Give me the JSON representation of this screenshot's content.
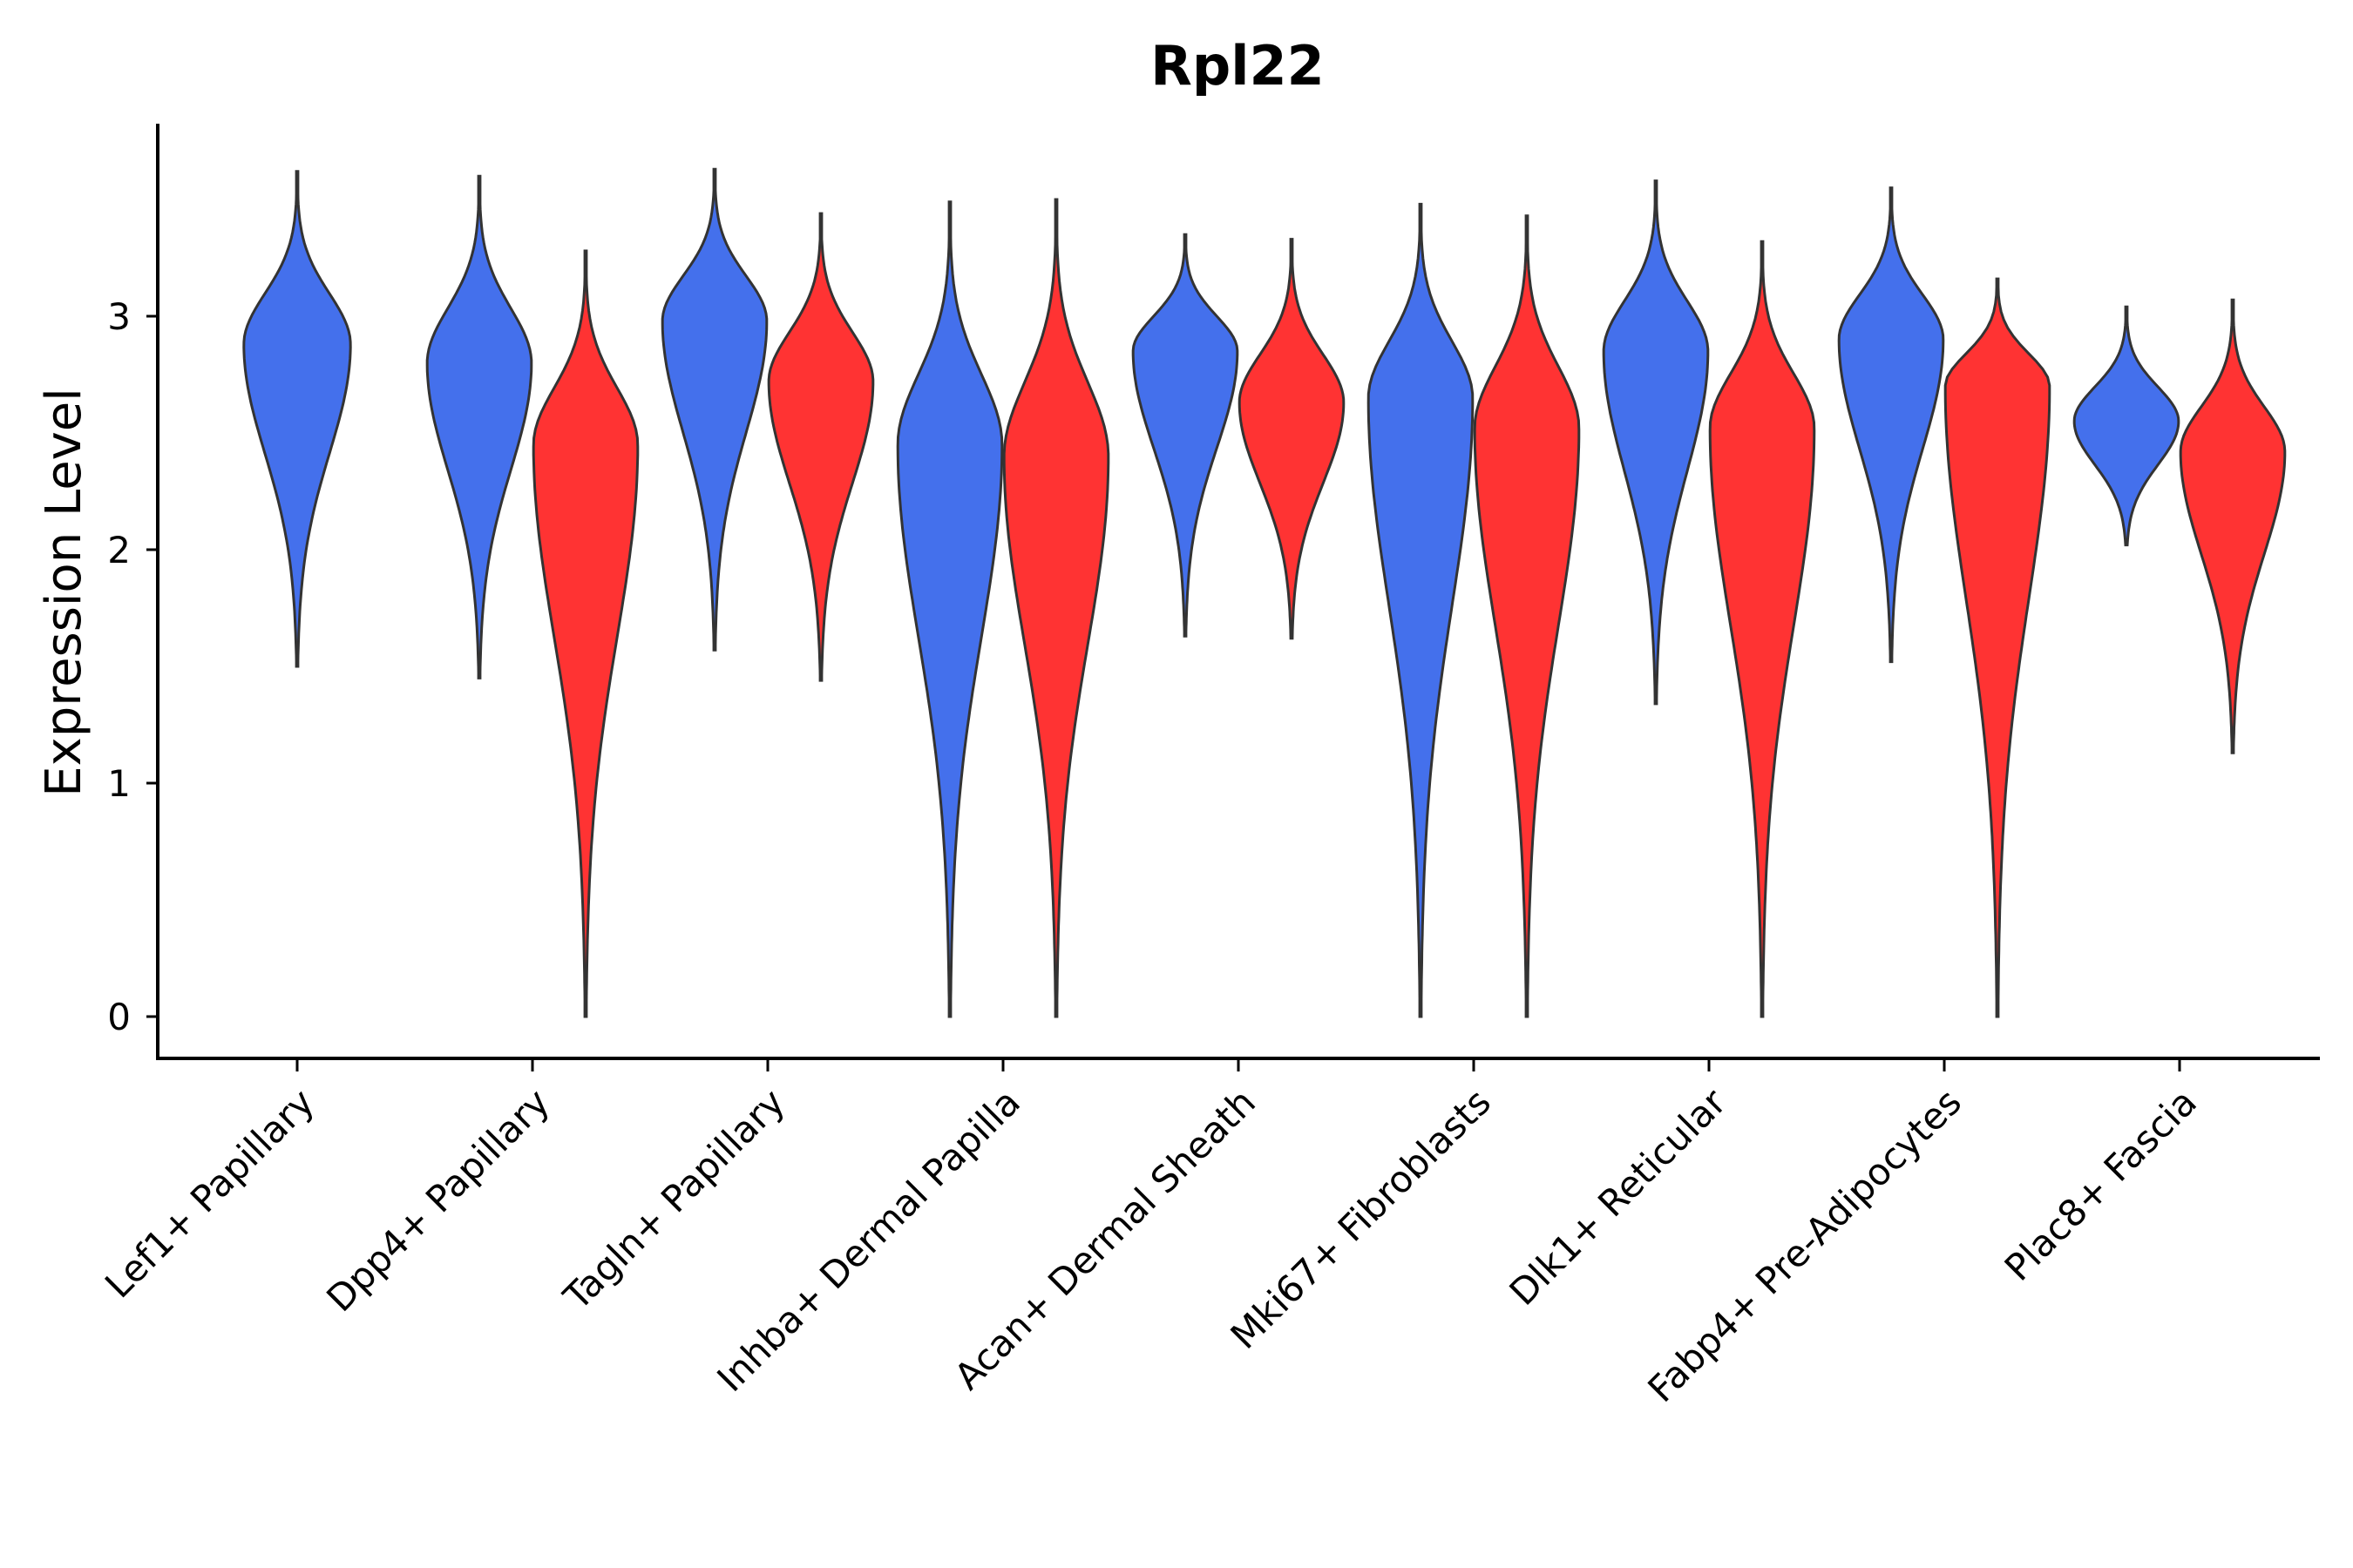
{
  "chart_data": {
    "type": "violin",
    "title": "Rpl22",
    "xlabel": "",
    "ylabel": "Expression Level",
    "ylim": [
      -0.18,
      3.8
    ],
    "yticks": [
      0,
      1,
      2,
      3
    ],
    "categories": [
      "Lef1+ Papillary",
      "Dpp4+ Papillary",
      "Tagln+ Papillary",
      "Inhba+ Dermal Papilla",
      "Acan+ Dermal Sheath",
      "Mki67+ Fibroblasts",
      "Dlk1+ Reticular",
      "Fabp4+ Pre-Adipocytes",
      "Plac8+ Fascia"
    ],
    "groups": [
      {
        "name": "group1",
        "color": "#4470ec"
      },
      {
        "name": "group2",
        "color": "#ff3333"
      }
    ],
    "violins": [
      {
        "category": "Lef1+ Papillary",
        "group": "group1",
        "min": 1.5,
        "max": 3.62,
        "peak": 2.88,
        "halfwidth": 0.45
      },
      {
        "category": "Dpp4+ Papillary",
        "group": "group1",
        "min": 1.45,
        "max": 3.6,
        "peak": 2.8,
        "halfwidth": 0.44
      },
      {
        "category": "Dpp4+ Papillary",
        "group": "group2",
        "min": 0.0,
        "max": 3.28,
        "peak": 2.45,
        "halfwidth": 0.44
      },
      {
        "category": "Tagln+ Papillary",
        "group": "group1",
        "min": 1.57,
        "max": 3.63,
        "peak": 2.98,
        "halfwidth": 0.44
      },
      {
        "category": "Tagln+ Papillary",
        "group": "group2",
        "min": 1.44,
        "max": 3.44,
        "peak": 2.72,
        "halfwidth": 0.44
      },
      {
        "category": "Inhba+ Dermal Papilla",
        "group": "group1",
        "min": 0.0,
        "max": 3.49,
        "peak": 2.45,
        "halfwidth": 0.44
      },
      {
        "category": "Inhba+ Dermal Papilla",
        "group": "group2",
        "min": 0.0,
        "max": 3.5,
        "peak": 2.4,
        "halfwidth": 0.44
      },
      {
        "category": "Acan+ Dermal Sheath",
        "group": "group1",
        "min": 1.63,
        "max": 3.35,
        "peak": 2.85,
        "halfwidth": 0.44
      },
      {
        "category": "Acan+ Dermal Sheath",
        "group": "group2",
        "min": 1.62,
        "max": 3.33,
        "peak": 2.63,
        "halfwidth": 0.44
      },
      {
        "category": "Mki67+ Fibroblasts",
        "group": "group1",
        "min": 0.0,
        "max": 3.48,
        "peak": 2.65,
        "halfwidth": 0.44
      },
      {
        "category": "Mki67+ Fibroblasts",
        "group": "group2",
        "min": 0.0,
        "max": 3.43,
        "peak": 2.52,
        "halfwidth": 0.44
      },
      {
        "category": "Dlk1+ Reticular",
        "group": "group1",
        "min": 1.34,
        "max": 3.58,
        "peak": 2.85,
        "halfwidth": 0.44
      },
      {
        "category": "Dlk1+ Reticular",
        "group": "group2",
        "min": 0.0,
        "max": 3.32,
        "peak": 2.52,
        "halfwidth": 0.44
      },
      {
        "category": "Fabp4+ Pre-Adipocytes",
        "group": "group1",
        "min": 1.52,
        "max": 3.55,
        "peak": 2.9,
        "halfwidth": 0.44
      },
      {
        "category": "Fabp4+ Pre-Adipocytes",
        "group": "group2",
        "min": 0.0,
        "max": 3.16,
        "peak": 2.7,
        "halfwidth": 0.44
      },
      {
        "category": "Plac8+ Fascia",
        "group": "group1",
        "min": 2.02,
        "max": 3.04,
        "peak": 2.55,
        "halfwidth": 0.44
      },
      {
        "category": "Plac8+ Fascia",
        "group": "group2",
        "min": 1.13,
        "max": 3.07,
        "peak": 2.42,
        "halfwidth": 0.44
      }
    ]
  }
}
